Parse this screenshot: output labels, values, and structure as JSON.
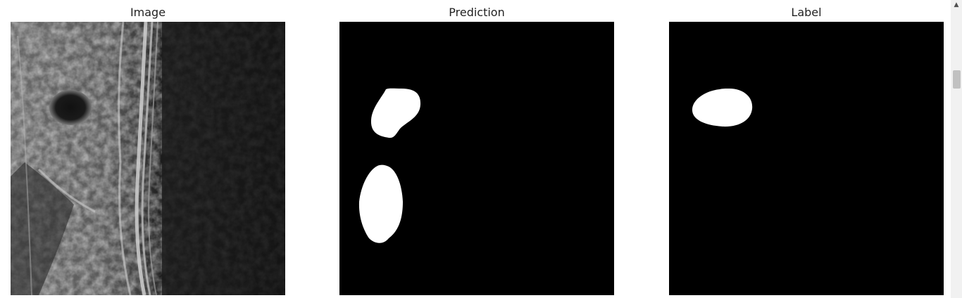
{
  "figure": {
    "panels": [
      {
        "title": "Image",
        "content": "grayscale ultrasound scan"
      },
      {
        "title": "Prediction",
        "content": "binary segmentation mask (2 regions)"
      },
      {
        "title": "Label",
        "content": "binary segmentation mask (1 region)"
      }
    ]
  },
  "colors": {
    "mask_background": "#000000",
    "mask_foreground": "#ffffff",
    "page_background": "#ffffff"
  },
  "scrollbar": {
    "arrow_icon": "scroll-up-arrow-icon"
  }
}
